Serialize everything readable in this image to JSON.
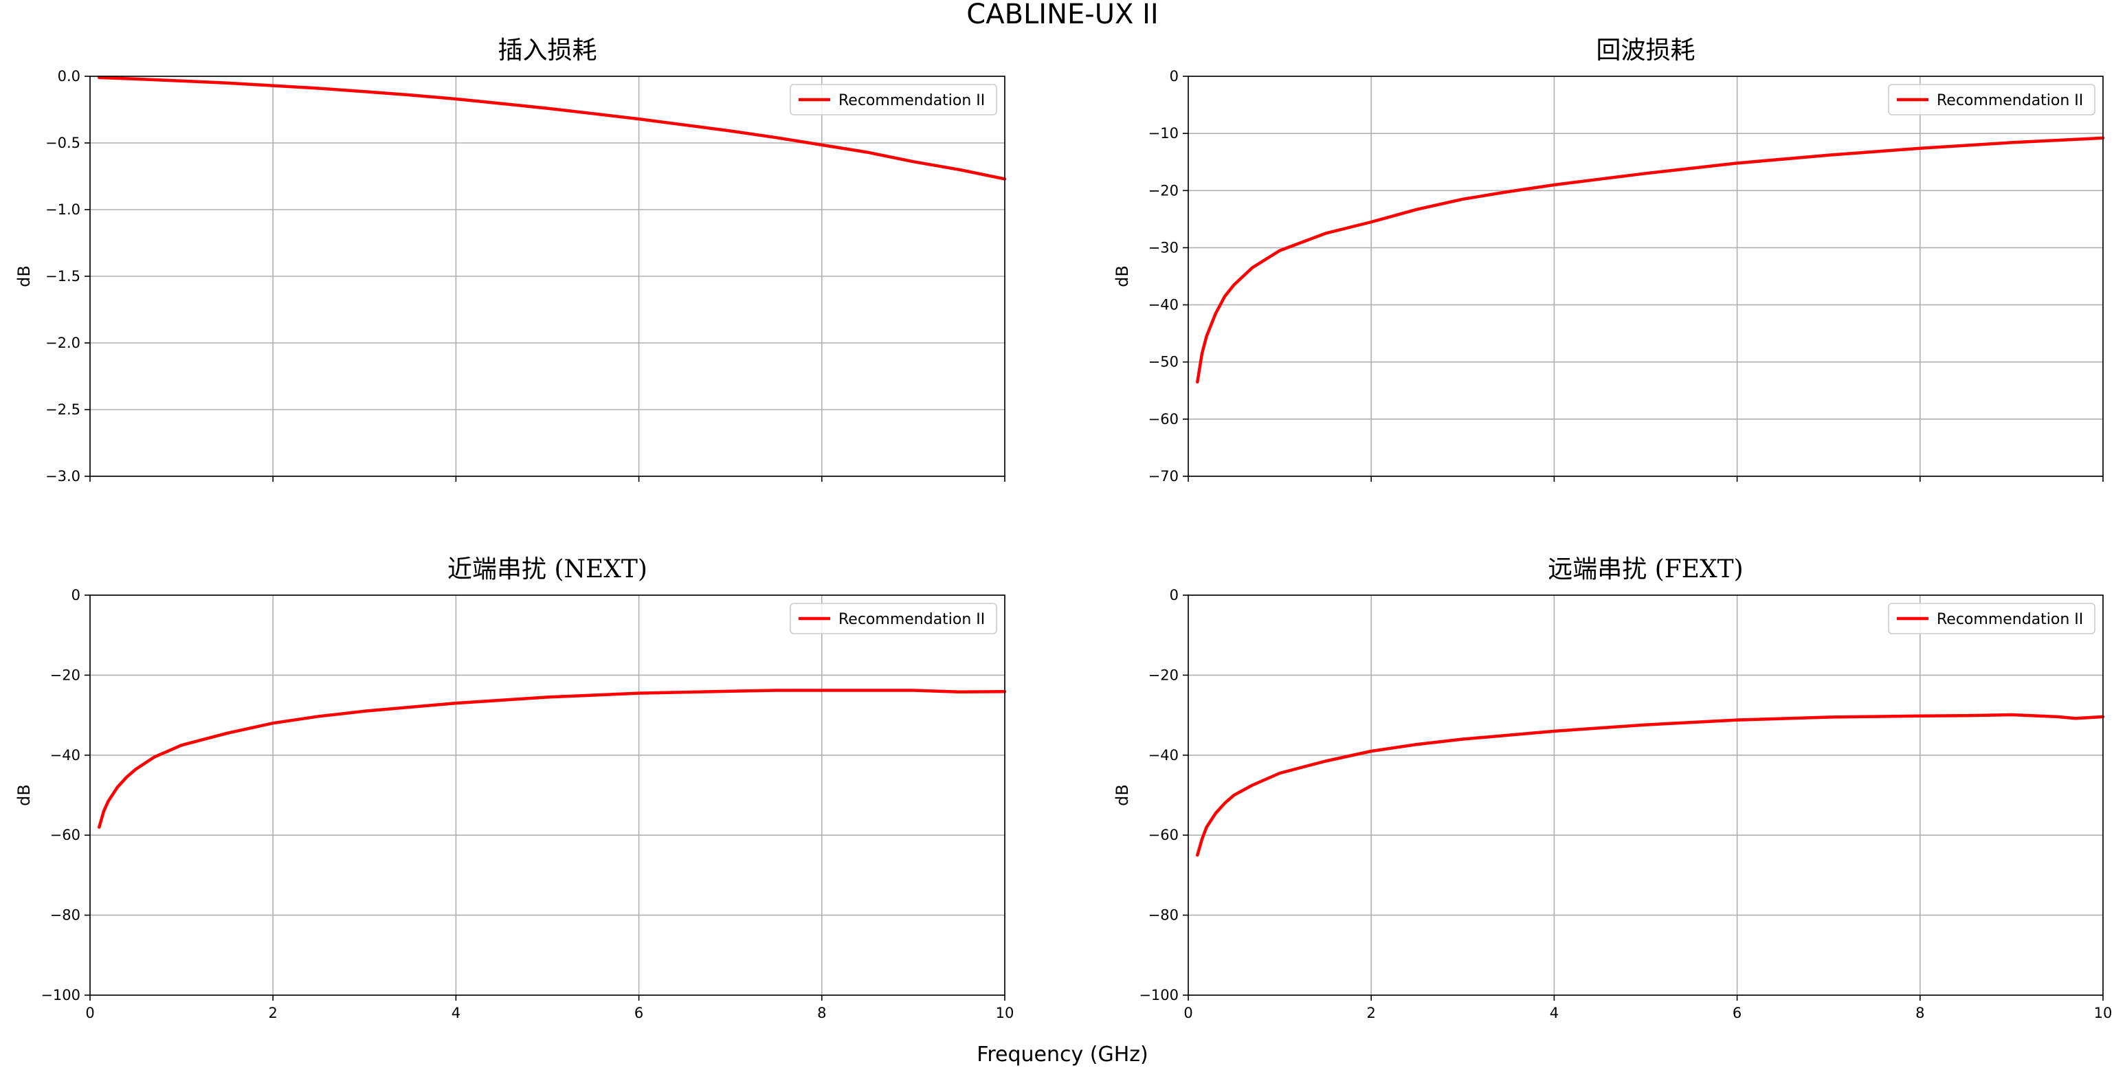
{
  "figure": {
    "title": "CABLINE-UX II",
    "xlabel": "Frequency (GHz)",
    "series_color": "#ff0000"
  },
  "chart_data": [
    {
      "type": "line",
      "title": "插入损耗",
      "xlabel": "",
      "ylabel": "dB",
      "xlim": [
        0,
        10
      ],
      "ylim": [
        -3.0,
        0.0
      ],
      "xticks": [
        0,
        2,
        4,
        6,
        8,
        10
      ],
      "xtick_labels_visible": false,
      "yticks": [
        0.0,
        -0.5,
        -1.0,
        -1.5,
        -2.0,
        -2.5,
        -3.0
      ],
      "ytick_labels": [
        "0.0",
        "−0.5",
        "−1.0",
        "−1.5",
        "−2.0",
        "−2.5",
        "−3.0"
      ],
      "grid": true,
      "legend": "top-right",
      "series": [
        {
          "name": "Recommendation II",
          "color": "#ff0000",
          "x": [
            0.1,
            0.5,
            1,
            1.5,
            2,
            2.5,
            3,
            3.5,
            4,
            4.5,
            5,
            5.5,
            6,
            6.5,
            7,
            7.5,
            8,
            8.5,
            9,
            9.5,
            10
          ],
          "y": [
            -0.01,
            -0.02,
            -0.035,
            -0.05,
            -0.07,
            -0.09,
            -0.115,
            -0.14,
            -0.17,
            -0.205,
            -0.24,
            -0.28,
            -0.32,
            -0.365,
            -0.41,
            -0.46,
            -0.515,
            -0.57,
            -0.64,
            -0.7,
            -0.77
          ]
        }
      ]
    },
    {
      "type": "line",
      "title": "回波损耗",
      "xlabel": "",
      "ylabel": "dB",
      "xlim": [
        0,
        10
      ],
      "ylim": [
        -70,
        0
      ],
      "xticks": [
        0,
        2,
        4,
        6,
        8,
        10
      ],
      "xtick_labels_visible": false,
      "yticks": [
        0,
        -10,
        -20,
        -30,
        -40,
        -50,
        -60,
        -70
      ],
      "ytick_labels": [
        "0",
        "−10",
        "−20",
        "−30",
        "−40",
        "−50",
        "−60",
        "−70"
      ],
      "grid": true,
      "legend": "top-right",
      "series": [
        {
          "name": "Recommendation II",
          "color": "#ff0000",
          "x": [
            0.1,
            0.15,
            0.2,
            0.3,
            0.4,
            0.5,
            0.7,
            1,
            1.5,
            2,
            2.5,
            3,
            3.5,
            4,
            5,
            6,
            7,
            8,
            9,
            10
          ],
          "y": [
            -53.5,
            -48.5,
            -45.5,
            -41.5,
            -38.5,
            -36.5,
            -33.5,
            -30.5,
            -27.5,
            -25.5,
            -23.3,
            -21.5,
            -20.2,
            -19,
            -17,
            -15.2,
            -13.8,
            -12.6,
            -11.6,
            -10.8
          ]
        }
      ]
    },
    {
      "type": "line",
      "title": "近端串扰 (NEXT)",
      "xlabel": "",
      "ylabel": "dB",
      "xlim": [
        0,
        10
      ],
      "ylim": [
        -100,
        0
      ],
      "xticks": [
        0,
        2,
        4,
        6,
        8,
        10
      ],
      "xtick_labels": [
        "0",
        "2",
        "4",
        "6",
        "8",
        "10"
      ],
      "xtick_labels_visible": true,
      "yticks": [
        0,
        -20,
        -40,
        -60,
        -80,
        -100
      ],
      "ytick_labels": [
        "0",
        "−20",
        "−40",
        "−60",
        "−80",
        "−100"
      ],
      "grid": true,
      "legend": "top-right",
      "series": [
        {
          "name": "Recommendation II",
          "color": "#ff0000",
          "x": [
            0.1,
            0.15,
            0.2,
            0.3,
            0.4,
            0.5,
            0.7,
            1,
            1.5,
            2,
            2.5,
            3,
            4,
            5,
            6,
            7,
            7.5,
            8,
            9,
            9.5,
            10
          ],
          "y": [
            -58,
            -54,
            -51.5,
            -48,
            -45.5,
            -43.5,
            -40.5,
            -37.5,
            -34.5,
            -32,
            -30.3,
            -29,
            -27,
            -25.5,
            -24.5,
            -24,
            -23.8,
            -23.8,
            -23.8,
            -24.2,
            -24.1
          ]
        }
      ]
    },
    {
      "type": "line",
      "title": "远端串扰 (FEXT)",
      "xlabel": "",
      "ylabel": "dB",
      "xlim": [
        0,
        10
      ],
      "ylim": [
        -100,
        0
      ],
      "xticks": [
        0,
        2,
        4,
        6,
        8,
        10
      ],
      "xtick_labels": [
        "0",
        "2",
        "4",
        "6",
        "8",
        "10"
      ],
      "xtick_labels_visible": true,
      "yticks": [
        0,
        -20,
        -40,
        -60,
        -80,
        -100
      ],
      "ytick_labels": [
        "0",
        "−20",
        "−40",
        "−60",
        "−80",
        "−100"
      ],
      "grid": true,
      "legend": "top-right",
      "series": [
        {
          "name": "Recommendation II",
          "color": "#ff0000",
          "x": [
            0.1,
            0.15,
            0.2,
            0.3,
            0.4,
            0.5,
            0.7,
            1,
            1.5,
            2,
            2.5,
            3,
            4,
            5,
            6,
            7,
            8,
            8.5,
            9,
            9.5,
            9.7,
            10
          ],
          "y": [
            -65,
            -61,
            -58,
            -54.5,
            -52,
            -50,
            -47.5,
            -44.5,
            -41.5,
            -39,
            -37.3,
            -36,
            -34,
            -32.4,
            -31.2,
            -30.5,
            -30.2,
            -30.1,
            -29.9,
            -30.4,
            -30.8,
            -30.4
          ]
        }
      ]
    }
  ]
}
